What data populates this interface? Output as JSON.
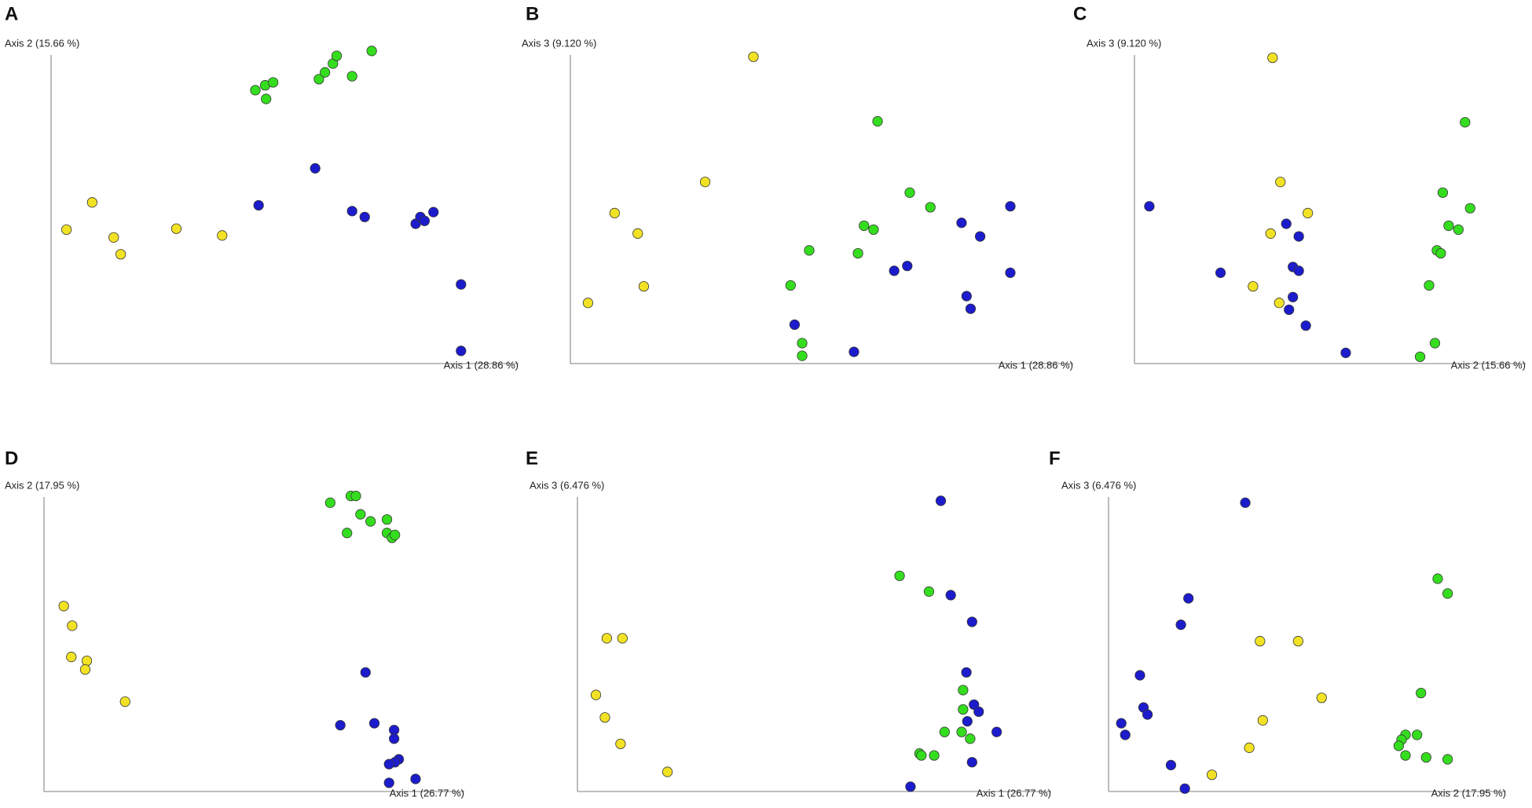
{
  "chart_data": [
    {
      "type": "scatter",
      "title": "A",
      "xlabel": "Axis 1 (28.86 %)",
      "ylabel": "Axis 2 (15.66 %)",
      "xlim": [
        0,
        100
      ],
      "ylim": [
        0,
        100
      ],
      "series": [
        {
          "color": "#f2e225",
          "x": [
            3.3,
            8.8,
            13.4,
            14.9,
            26.8,
            36.6
          ],
          "y": [
            41.3,
            49.7,
            38.9,
            33.7,
            41.6,
            39.5
          ]
        },
        {
          "color": "#35dd1f",
          "x": [
            43.7,
            45.8,
            47.5,
            46,
            57.3,
            58.6,
            60.3,
            61.1,
            64.4,
            68.6
          ],
          "y": [
            84.3,
            85.8,
            86.7,
            81.6,
            87.7,
            89.8,
            92.5,
            94.9,
            88.6,
            96.4
          ]
        },
        {
          "color": "#1c1ccc",
          "x": [
            44.4,
            56.5,
            64.4,
            67.1,
            78,
            79,
            79.9,
            81.8,
            87.7,
            87.7
          ],
          "y": [
            48.8,
            60.2,
            47,
            45.2,
            43.1,
            45.2,
            44,
            46.7,
            24.4,
            3.9
          ]
        }
      ]
    },
    {
      "type": "scatter",
      "title": "B",
      "xlabel": "Axis 1 (28.86 %)",
      "ylabel": "Axis 3 (9.120 %)",
      "xlim": [
        0,
        100
      ],
      "ylim": [
        0,
        100
      ],
      "series": [
        {
          "color": "#f2e225",
          "x": [
            36.4,
            26.8,
            8.8,
            13.4,
            14.6,
            3.5
          ],
          "y": [
            94.6,
            56,
            46.4,
            40.1,
            23.8,
            18.7
          ]
        },
        {
          "color": "#35dd1f",
          "x": [
            61.1,
            67.5,
            71.6,
            58.4,
            60.3,
            47.5,
            57.2,
            43.8,
            46.1,
            46.1
          ],
          "y": [
            74.7,
            52.7,
            48.2,
            42.5,
            41.3,
            34.9,
            34,
            24.1,
            6.3,
            2.4
          ]
        },
        {
          "color": "#1c1ccc",
          "x": [
            77.8,
            81.5,
            87.5,
            87.5,
            64.4,
            67,
            78.8,
            79.6,
            44.6,
            56.4
          ],
          "y": [
            43.4,
            39.2,
            48.5,
            28,
            28.6,
            30.1,
            20.8,
            16.9,
            12,
            3.6
          ]
        }
      ]
    },
    {
      "type": "scatter",
      "title": "C",
      "xlabel": "Axis 2 (15.66 %)",
      "ylabel": "Axis 3 (9.120 %)",
      "xlim": [
        0,
        100
      ],
      "ylim": [
        0,
        100
      ],
      "series": [
        {
          "color": "#f2e225",
          "x": [
            35.3,
            37.3,
            44.3,
            34.8,
            30.3,
            37
          ],
          "y": [
            94.3,
            56,
            46.4,
            40.1,
            23.8,
            18.7
          ]
        },
        {
          "color": "#35dd1f",
          "x": [
            84.5,
            78.8,
            85.8,
            80.3,
            82.8,
            77.3,
            78.3,
            75.3,
            76.8,
            73
          ],
          "y": [
            74.4,
            52.7,
            47.9,
            42.5,
            41.3,
            34.9,
            34,
            24.1,
            6.3,
            2.1
          ]
        },
        {
          "color": "#1c1ccc",
          "x": [
            3.8,
            22,
            38.8,
            42,
            40.5,
            42,
            40.5,
            39.5,
            43.8,
            54
          ],
          "y": [
            48.5,
            28,
            43.1,
            39.2,
            29.8,
            28.6,
            20.5,
            16.6,
            11.7,
            3.3
          ]
        }
      ]
    },
    {
      "type": "scatter",
      "title": "D",
      "xlabel": "Axis 1 (26.77 %)",
      "ylabel": "Axis 2 (17.95 %)",
      "xlim": [
        0,
        100
      ],
      "ylim": [
        0,
        100
      ],
      "series": [
        {
          "color": "#f2e225",
          "x": [
            4.7,
            6.7,
            6.5,
            10.2,
            9.8,
            19.3
          ],
          "y": [
            57.6,
            51.5,
            41.8,
            40.6,
            37.9,
            27.9
          ]
        },
        {
          "color": "#35dd1f",
          "x": [
            68.1,
            73,
            74.2,
            75.3,
            77.7,
            81.6,
            72.1,
            81.6,
            82.8,
            83.5
          ],
          "y": [
            89.7,
            91.8,
            91.8,
            86.1,
            83.9,
            84.5,
            80.3,
            80.3,
            78.8,
            79.7
          ]
        },
        {
          "color": "#1c1ccc",
          "x": [
            76.5,
            70.5,
            78.6,
            83.3,
            83.3,
            84.4,
            83.5,
            82.1,
            82.1,
            88.4
          ],
          "y": [
            37,
            20.6,
            21.2,
            19.1,
            16.4,
            10,
            9.1,
            8.5,
            2.7,
            3.9
          ]
        }
      ]
    },
    {
      "type": "scatter",
      "title": "E",
      "xlabel": "Axis 1 (26.77 %)",
      "ylabel": "Axis 3 (6.476 %)",
      "xlim": [
        0,
        100
      ],
      "ylim": [
        0,
        100
      ],
      "series": [
        {
          "color": "#f2e225",
          "x": [
            6.2,
            9.5,
            3.9,
            5.8,
            9.1,
            19
          ],
          "y": [
            47.6,
            47.6,
            30,
            23,
            14.8,
            6.1
          ]
        },
        {
          "color": "#35dd1f",
          "x": [
            68,
            74.2,
            81.4,
            81.4,
            77.5,
            81.1,
            82.9,
            72.2,
            72.6,
            75.3
          ],
          "y": [
            67,
            62.1,
            31.5,
            25.5,
            18.5,
            18.5,
            16.4,
            11.8,
            11.2,
            11.2
          ]
        },
        {
          "color": "#1c1ccc",
          "x": [
            76.7,
            78.8,
            83.3,
            82.1,
            83.7,
            84.7,
            82.3,
            88.5,
            83.3,
            70.3
          ],
          "y": [
            90.3,
            61,
            52.7,
            37,
            27,
            24.8,
            21.8,
            18.5,
            9.1,
            1.5
          ]
        }
      ]
    },
    {
      "type": "scatter",
      "title": "F",
      "xlabel": "Axis 2 (17.95 %)",
      "ylabel": "Axis 3 (6.476 %)",
      "xlim": [
        0,
        100
      ],
      "ylim": [
        0,
        100
      ],
      "series": [
        {
          "color": "#f2e225",
          "x": [
            38.1,
            47.7,
            53.6,
            38.8,
            35.4,
            26
          ],
          "y": [
            46.7,
            46.7,
            29.1,
            22.1,
            13.6,
            5.2
          ]
        },
        {
          "color": "#35dd1f",
          "x": [
            82.8,
            85.3,
            78.6,
            77.6,
            74.7,
            73.7,
            73,
            74.7,
            79.9,
            85.3
          ],
          "y": [
            66.1,
            61.5,
            30.6,
            17.6,
            17.6,
            16.1,
            14.2,
            11.2,
            10.6,
            10
          ]
        },
        {
          "color": "#1c1ccc",
          "x": [
            34.4,
            20.1,
            18.2,
            7.9,
            8.8,
            9.8,
            3.2,
            4.2,
            15.7,
            19.2
          ],
          "y": [
            89.7,
            60,
            51.8,
            36.1,
            26.1,
            23.9,
            21.2,
            17.6,
            8.2,
            0.9
          ]
        }
      ]
    }
  ]
}
